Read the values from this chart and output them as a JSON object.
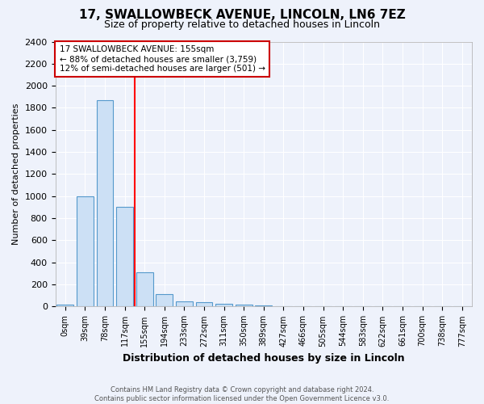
{
  "title1": "17, SWALLOWBECK AVENUE, LINCOLN, LN6 7EZ",
  "title2": "Size of property relative to detached houses in Lincoln",
  "xlabel": "Distribution of detached houses by size in Lincoln",
  "ylabel": "Number of detached properties",
  "categories": [
    "0sqm",
    "39sqm",
    "78sqm",
    "117sqm",
    "155sqm",
    "194sqm",
    "233sqm",
    "272sqm",
    "311sqm",
    "350sqm",
    "389sqm",
    "427sqm",
    "466sqm",
    "505sqm",
    "544sqm",
    "583sqm",
    "622sqm",
    "661sqm",
    "700sqm",
    "738sqm",
    "777sqm"
  ],
  "values": [
    20,
    1000,
    1870,
    900,
    310,
    110,
    50,
    40,
    25,
    15,
    10,
    0,
    0,
    0,
    0,
    0,
    0,
    0,
    0,
    0,
    0
  ],
  "bar_color": "#cce0f5",
  "bar_edge_color": "#5599cc",
  "red_line_index": 4,
  "red_line_label": "17 SWALLOWBECK AVENUE: 155sqm",
  "annotation_line2": "← 88% of detached houses are smaller (3,759)",
  "annotation_line3": "12% of semi-detached houses are larger (501) →",
  "annotation_box_color": "#ffffff",
  "annotation_box_edge": "#cc0000",
  "ylim": [
    0,
    2400
  ],
  "yticks": [
    0,
    200,
    400,
    600,
    800,
    1000,
    1200,
    1400,
    1600,
    1800,
    2000,
    2200,
    2400
  ],
  "footer1": "Contains HM Land Registry data © Crown copyright and database right 2024.",
  "footer2": "Contains public sector information licensed under the Open Government Licence v3.0.",
  "bg_color": "#eef2fb",
  "plot_bg_color": "#eef2fb",
  "grid_color": "#ffffff",
  "title1_fontsize": 11,
  "title2_fontsize": 9
}
